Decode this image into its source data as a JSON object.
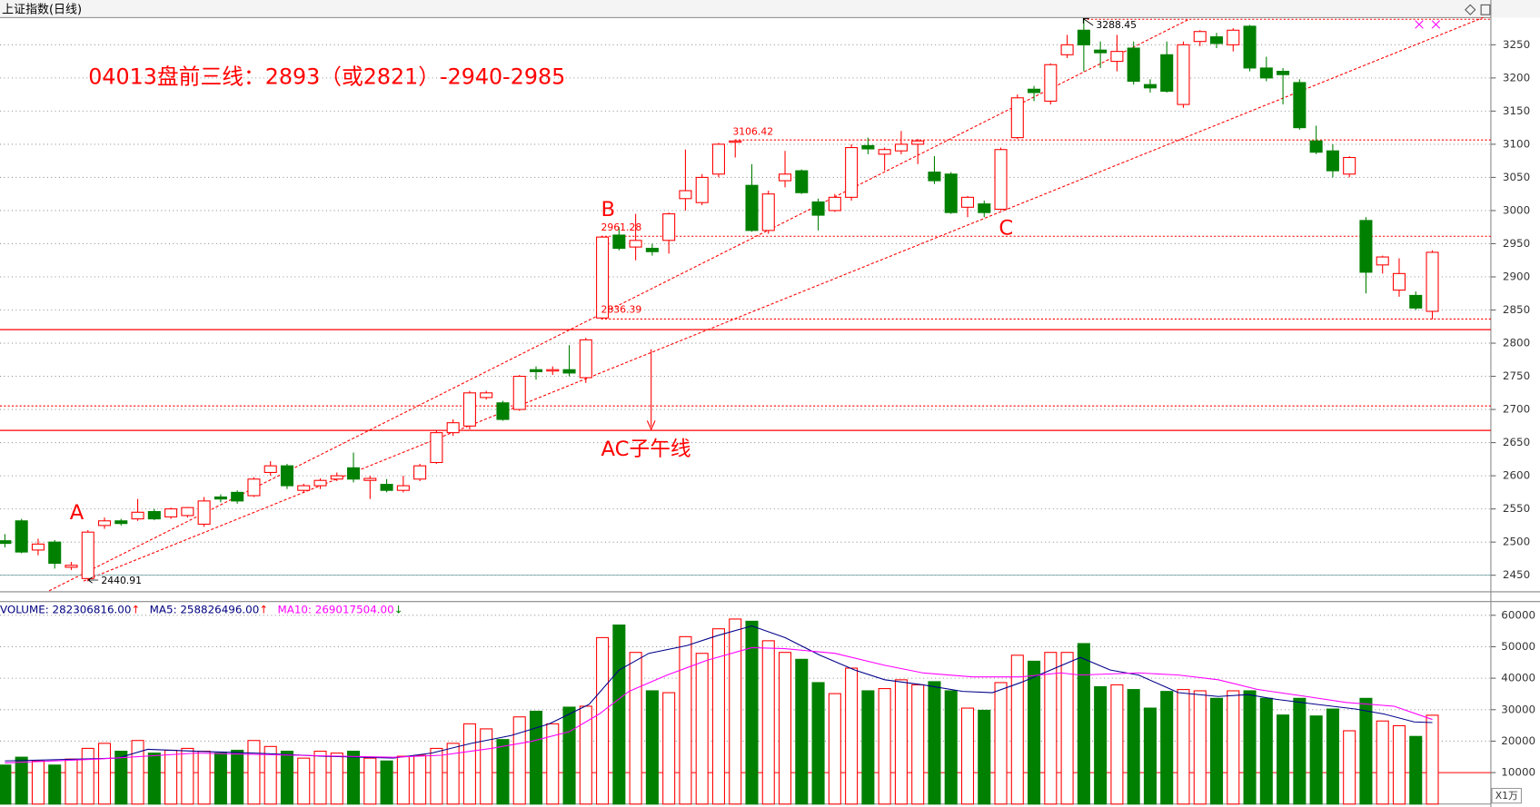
{
  "chart_data": [
    {
      "type": "candlestick",
      "title": "上证指数(日线)",
      "open": [
        2502,
        2532,
        2488,
        2500,
        2462,
        2445,
        2525,
        2532,
        2535,
        2546,
        2538,
        2540,
        2527,
        2568,
        2575,
        2570,
        2605,
        2615,
        2578,
        2585,
        2595,
        2612,
        2593,
        2587,
        2578,
        2595,
        2620,
        2665,
        2675,
        2718,
        2710,
        2700,
        2760,
        2758,
        2760,
        2748,
        2838,
        2963,
        2945,
        2943,
        2955,
        3018,
        3012,
        3055,
        3103,
        3038,
        2970,
        3045,
        3060,
        3013,
        3000,
        3020,
        3098,
        3085,
        3090,
        3100,
        3058,
        3055,
        3005,
        3010,
        3002,
        3110,
        3183,
        3165,
        3235,
        3272,
        3242,
        3225,
        3245,
        3190,
        3235,
        3160,
        3255,
        3262,
        3250,
        3278,
        3215,
        3210,
        3193,
        3105,
        3090,
        3055,
        2985,
        2918,
        2880,
        2872,
        2848
      ],
      "high": [
        2512,
        2535,
        2505,
        2503,
        2470,
        2518,
        2537,
        2535,
        2565,
        2550,
        2552,
        2553,
        2568,
        2572,
        2578,
        2598,
        2622,
        2618,
        2588,
        2596,
        2605,
        2635,
        2600,
        2595,
        2600,
        2618,
        2668,
        2685,
        2728,
        2728,
        2713,
        2752,
        2765,
        2765,
        2797,
        2808,
        2961.28,
        2975,
        2995,
        2950,
        2997,
        3092,
        3055,
        3102,
        3106.42,
        3070,
        3030,
        3090,
        3062,
        3018,
        3025,
        3100,
        3110,
        3095,
        3120,
        3108,
        3082,
        3058,
        3022,
        3015,
        3095,
        3175,
        3188,
        3222,
        3265,
        3288.45,
        3255,
        3265,
        3255,
        3198,
        3255,
        3255,
        3272,
        3268,
        3275,
        3280,
        3232,
        3215,
        3198,
        3128,
        3100,
        3082,
        2990,
        2932,
        2928,
        2878,
        2940
      ],
      "low": [
        2492,
        2483,
        2480,
        2460,
        2458,
        2440.91,
        2520,
        2525,
        2532,
        2533,
        2535,
        2537,
        2523,
        2560,
        2558,
        2568,
        2600,
        2580,
        2574,
        2580,
        2592,
        2590,
        2565,
        2575,
        2575,
        2592,
        2618,
        2660,
        2670,
        2715,
        2683,
        2698,
        2745,
        2752,
        2750,
        2740,
        2836.39,
        2940,
        2925,
        2932,
        2935,
        3000,
        3008,
        3050,
        3080,
        2968,
        2965,
        3035,
        3025,
        2970,
        2998,
        3015,
        3085,
        3060,
        3085,
        3070,
        3040,
        2995,
        2990,
        2990,
        3000,
        3108,
        3165,
        3160,
        3230,
        3210,
        3215,
        3210,
        3190,
        3178,
        3178,
        3155,
        3248,
        3245,
        3240,
        3210,
        3195,
        3160,
        3122,
        3085,
        3050,
        3050,
        2875,
        2905,
        2870,
        2850,
        2836
      ],
      "close": [
        2498,
        2485,
        2497,
        2468,
        2465,
        2515,
        2532,
        2528,
        2545,
        2535,
        2550,
        2552,
        2562,
        2565,
        2562,
        2595,
        2615,
        2585,
        2585,
        2593,
        2600,
        2595,
        2596,
        2578,
        2585,
        2615,
        2665,
        2680,
        2725,
        2725,
        2685,
        2750,
        2757,
        2760,
        2755,
        2805,
        2960,
        2943,
        2955,
        2938,
        2995,
        3030,
        3050,
        3100,
        3105,
        2970,
        3025,
        3055,
        3027,
        2993,
        3020,
        3095,
        3093,
        3092,
        3100,
        3105,
        3045,
        2997,
        3020,
        2997,
        3092,
        3170,
        3178,
        3220,
        3250,
        3250,
        3238,
        3240,
        3195,
        3185,
        3180,
        3250,
        3270,
        3252,
        3272,
        3215,
        3200,
        3205,
        3125,
        3088,
        3060,
        3080,
        2907,
        2930,
        2905,
        2853,
        2937
      ],
      "up_color": "#ff0000",
      "down_color": "#008000",
      "ylim": [
        2425,
        3291
      ],
      "yticks": [
        2450,
        2500,
        2550,
        2600,
        2650,
        2700,
        2750,
        2800,
        2850,
        2900,
        2950,
        3000,
        3050,
        3100,
        3150,
        3200,
        3250
      ],
      "grid": true,
      "annotations": [
        "04013盘前三线：2893（或2821）-2940-2985",
        "A",
        "B",
        "C",
        "AC子午线"
      ],
      "price_labels": [
        3288.45,
        3106.42,
        2961.28,
        2836.39,
        2440.91
      ]
    },
    {
      "type": "bar",
      "values": [
        12400,
        14900,
        13700,
        12400,
        14300,
        17700,
        19300,
        16800,
        20200,
        16200,
        17100,
        17700,
        16800,
        16200,
        17100,
        20200,
        18300,
        16800,
        14600,
        16800,
        16200,
        16800,
        14600,
        13700,
        15200,
        15500,
        17700,
        19300,
        25500,
        23900,
        20500,
        27700,
        29500,
        25500,
        30800,
        31100,
        52900,
        56900,
        48200,
        36000,
        35400,
        53200,
        47900,
        55700,
        58800,
        58100,
        51900,
        48200,
        46000,
        38600,
        35100,
        43200,
        36000,
        36700,
        39500,
        37900,
        38900,
        36000,
        30500,
        29800,
        38600,
        47300,
        45400,
        48200,
        48200,
        51000,
        37300,
        37900,
        36400,
        30500,
        35800,
        36400,
        36000,
        33600,
        36000,
        36000,
        33600,
        28300,
        33600,
        28000,
        30200,
        23300,
        33600,
        26400,
        24900,
        21500,
        28230.6816
      ],
      "up_color": "#ff0000",
      "down_color": "#008000",
      "ylim": [
        0,
        64350
      ],
      "yticks": [
        10000,
        20000,
        30000,
        40000,
        50000,
        60000
      ],
      "grid": true,
      "unit_label": "X1万",
      "legend": [
        {
          "text": "VOLUME: 282306816.00",
          "arrow": "↑",
          "color": "#000080",
          "arrow_color": "#ff0000"
        },
        {
          "text": "MA5: 258826496.00",
          "arrow": "↑",
          "color": "#000080",
          "arrow_color": "#ff0000"
        },
        {
          "text": "MA10: 269017504.00",
          "arrow": "↓",
          "color": "#ff00ff",
          "arrow_color": "#008000"
        }
      ],
      "series": [
        {
          "color": "#00008b",
          "x": [
            0,
            6.8,
            8.6,
            11.5,
            15.1,
            19.2,
            23.4,
            25.7,
            28.1,
            30.5,
            32.8,
            35.2,
            37,
            38.8,
            41.1,
            42.9,
            45,
            47,
            49.1,
            51.2,
            53,
            55.3,
            57.7,
            59.5,
            61.2,
            63,
            64.8,
            66.6,
            68.3,
            70.7,
            73.1,
            74.9,
            76.6,
            79,
            81.4,
            83.1,
            84.9,
            86
          ],
          "values": [
            13700,
            14600,
            17400,
            16800,
            16200,
            15200,
            14600,
            16200,
            19300,
            21800,
            25500,
            31700,
            42600,
            47900,
            50400,
            53500,
            56600,
            52900,
            47300,
            42600,
            39500,
            37900,
            35800,
            35400,
            38600,
            42600,
            46600,
            42600,
            41000,
            35400,
            34200,
            34800,
            33300,
            31700,
            30200,
            28600,
            26100,
            25882.6496
          ]
        },
        {
          "color": "#ff00ff",
          "x": [
            0,
            5.6,
            11.5,
            17.5,
            23.4,
            26.3,
            29.3,
            31.7,
            34,
            35.8,
            37.6,
            39.9,
            42.3,
            45,
            47,
            50,
            53,
            55.3,
            58.3,
            61.2,
            63.6,
            64.8,
            68.3,
            70.7,
            73.1,
            75.5,
            78.4,
            80.8,
            83.7,
            86
          ],
          "values": [
            13100,
            14300,
            16200,
            15500,
            14900,
            15500,
            17700,
            19900,
            23000,
            28600,
            35800,
            41000,
            45700,
            49700,
            49400,
            47900,
            44100,
            41700,
            40400,
            40400,
            41700,
            41000,
            41700,
            41000,
            39500,
            36400,
            34200,
            32300,
            31100,
            26901.7504
          ]
        }
      ]
    }
  ]
}
